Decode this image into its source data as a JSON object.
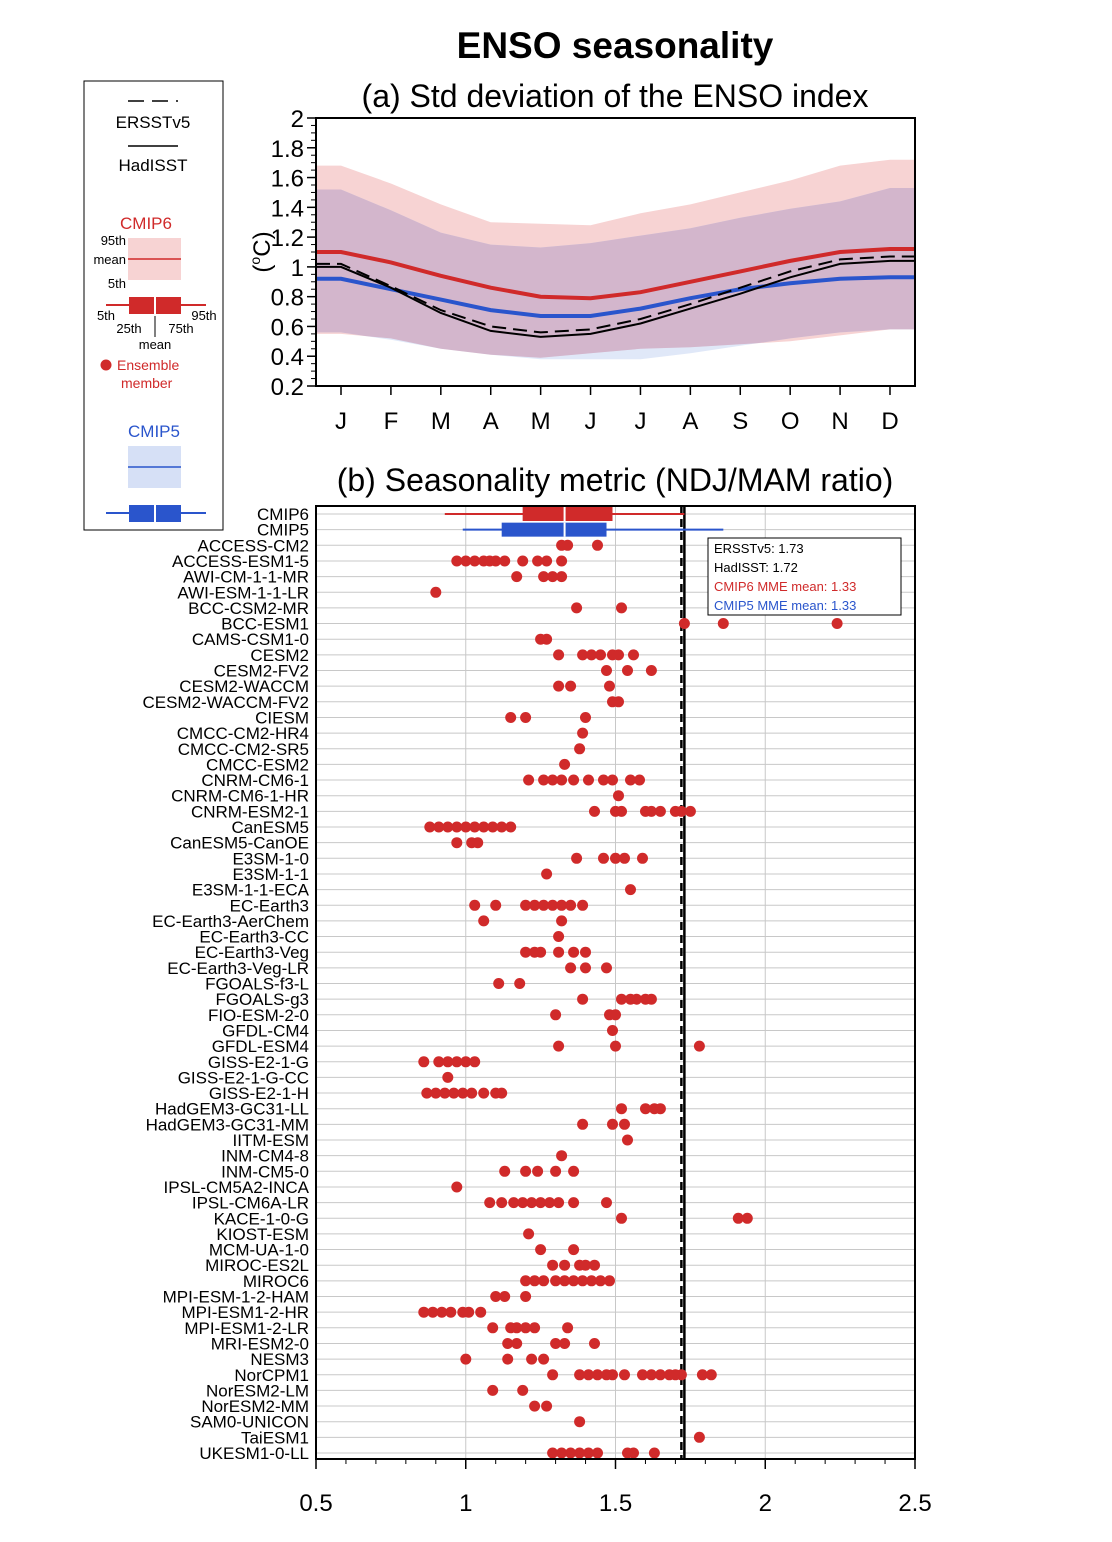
{
  "figure": {
    "title": "ENSO seasonality"
  },
  "legend": {
    "ersst_label": "ERSSTv5",
    "hadisst_label": "HadISST",
    "cmip6_label": "CMIP6",
    "cmip5_label": "CMIP5",
    "p95_label": "95th",
    "mean_label": "mean",
    "p5_label": "5th",
    "box_p5_label": "5th",
    "box_p25_label": "25th",
    "box_p75_label": "75th",
    "box_p95_label": "95th",
    "box_mean_label": "mean",
    "ensemble_label_1": "Ensemble",
    "ensemble_label_2": "member"
  },
  "colors": {
    "cmip6": "#d02a2a",
    "cmip6_band": "#f7d3d3",
    "cmip5": "#2a55cc",
    "cmip5_band": "#d6e0f6",
    "overlap_band": "#d3b6cc",
    "obs": "#000000",
    "grid": "#c8c8c8"
  },
  "chart_data": [
    {
      "type": "line",
      "title": "(a) Std deviation of the ENSO index",
      "ylabel": "(°C)",
      "ylabel_prefix": "(",
      "ylabel_unit": "C)",
      "categories": [
        "J",
        "F",
        "M",
        "A",
        "M",
        "J",
        "J",
        "A",
        "S",
        "O",
        "N",
        "D"
      ],
      "ylim": [
        0.2,
        2.0
      ],
      "yticks": [
        "0.2",
        "0.4",
        "0.6",
        "0.8",
        "1",
        "1.2",
        "1.4",
        "1.6",
        "1.8",
        "2"
      ],
      "grid": false,
      "series": [
        {
          "name": "ERSSTv5",
          "style": "dashed",
          "values": [
            1.02,
            0.87,
            0.71,
            0.6,
            0.56,
            0.58,
            0.65,
            0.75,
            0.86,
            0.97,
            1.05,
            1.07
          ]
        },
        {
          "name": "HadISST",
          "style": "solid",
          "values": [
            1.0,
            0.86,
            0.69,
            0.57,
            0.53,
            0.55,
            0.62,
            0.72,
            0.82,
            0.93,
            1.02,
            1.04
          ]
        },
        {
          "name": "CMIP6",
          "style": "mean",
          "values": [
            1.1,
            1.03,
            0.94,
            0.86,
            0.8,
            0.79,
            0.83,
            0.9,
            0.97,
            1.04,
            1.1,
            1.12
          ],
          "p5": [
            0.55,
            0.52,
            0.45,
            0.41,
            0.39,
            0.42,
            0.45,
            0.46,
            0.48,
            0.5,
            0.54,
            0.58
          ],
          "p95": [
            1.68,
            1.56,
            1.42,
            1.3,
            1.29,
            1.28,
            1.36,
            1.42,
            1.5,
            1.58,
            1.68,
            1.72
          ]
        },
        {
          "name": "CMIP5",
          "style": "mean",
          "values": [
            0.92,
            0.85,
            0.78,
            0.71,
            0.67,
            0.67,
            0.72,
            0.79,
            0.85,
            0.89,
            0.92,
            0.93
          ],
          "p5": [
            0.56,
            0.51,
            0.45,
            0.41,
            0.38,
            0.38,
            0.38,
            0.42,
            0.47,
            0.52,
            0.56,
            0.58
          ],
          "p95": [
            1.52,
            1.38,
            1.23,
            1.15,
            1.13,
            1.16,
            1.21,
            1.26,
            1.33,
            1.39,
            1.44,
            1.53
          ]
        }
      ]
    },
    {
      "type": "scatter",
      "title": "(b) Seasonality metric (NDJ/MAM ratio)",
      "xlim": [
        0.5,
        2.5
      ],
      "xticks": [
        "0.5",
        "1",
        "1.5",
        "2",
        "2.5"
      ],
      "grid": true,
      "obs_lines": [
        {
          "name": "ERSSTv5",
          "value": 1.73,
          "label": "ERSSTv5: 1.73",
          "style": "solid"
        },
        {
          "name": "HadISST",
          "value": 1.72,
          "label": "HadISST: 1.72",
          "style": "dashed"
        }
      ],
      "annotation": {
        "ersst": "ERSSTv5: 1.73",
        "hadisst": "HadISST: 1.72",
        "cmip6": "CMIP6 MME mean: 1.33",
        "cmip5": "CMIP5 MME mean: 1.33"
      },
      "boxes": [
        {
          "name": "CMIP6",
          "p5": 0.93,
          "p25": 1.19,
          "mean": 1.33,
          "p75": 1.49,
          "p95": 1.73
        },
        {
          "name": "CMIP5",
          "p5": 0.99,
          "p25": 1.12,
          "mean": 1.33,
          "p75": 1.47,
          "p95": 1.86
        }
      ],
      "models": [
        {
          "name": "ACCESS-CM2",
          "values": [
            1.32,
            1.34,
            1.44
          ]
        },
        {
          "name": "ACCESS-ESM1-5",
          "values": [
            0.97,
            1.0,
            1.03,
            1.06,
            1.08,
            1.1,
            1.13,
            1.19,
            1.24,
            1.27,
            1.32
          ]
        },
        {
          "name": "AWI-CM-1-1-MR",
          "values": [
            1.17,
            1.26,
            1.29,
            1.32
          ]
        },
        {
          "name": "AWI-ESM-1-1-LR",
          "values": [
            0.9
          ]
        },
        {
          "name": "BCC-CSM2-MR",
          "values": [
            1.37,
            1.52
          ]
        },
        {
          "name": "BCC-ESM1",
          "values": [
            1.73,
            1.86,
            2.24
          ]
        },
        {
          "name": "CAMS-CSM1-0",
          "values": [
            1.25,
            1.27
          ]
        },
        {
          "name": "CESM2",
          "values": [
            1.31,
            1.39,
            1.42,
            1.45,
            1.49,
            1.51,
            1.56
          ]
        },
        {
          "name": "CESM2-FV2",
          "values": [
            1.47,
            1.54,
            1.62
          ]
        },
        {
          "name": "CESM2-WACCM",
          "values": [
            1.31,
            1.35,
            1.48
          ]
        },
        {
          "name": "CESM2-WACCM-FV2",
          "values": [
            1.49,
            1.51
          ]
        },
        {
          "name": "CIESM",
          "values": [
            1.15,
            1.2,
            1.4
          ]
        },
        {
          "name": "CMCC-CM2-HR4",
          "values": [
            1.39
          ]
        },
        {
          "name": "CMCC-CM2-SR5",
          "values": [
            1.38
          ]
        },
        {
          "name": "CMCC-ESM2",
          "values": [
            1.33
          ]
        },
        {
          "name": "CNRM-CM6-1",
          "values": [
            1.21,
            1.26,
            1.29,
            1.32,
            1.36,
            1.41,
            1.46,
            1.49,
            1.55,
            1.58
          ]
        },
        {
          "name": "CNRM-CM6-1-HR",
          "values": [
            1.51
          ]
        },
        {
          "name": "CNRM-ESM2-1",
          "values": [
            1.43,
            1.5,
            1.52,
            1.6,
            1.62,
            1.65,
            1.7,
            1.72,
            1.75
          ]
        },
        {
          "name": "CanESM5",
          "values": [
            0.88,
            0.91,
            0.94,
            0.97,
            1.0,
            1.03,
            1.06,
            1.09,
            1.12,
            1.15
          ]
        },
        {
          "name": "CanESM5-CanOE",
          "values": [
            0.97,
            1.02,
            1.04
          ]
        },
        {
          "name": "E3SM-1-0",
          "values": [
            1.37,
            1.46,
            1.5,
            1.53,
            1.59
          ]
        },
        {
          "name": "E3SM-1-1",
          "values": [
            1.27
          ]
        },
        {
          "name": "E3SM-1-1-ECA",
          "values": [
            1.55
          ]
        },
        {
          "name": "EC-Earth3",
          "values": [
            1.03,
            1.1,
            1.2,
            1.23,
            1.26,
            1.29,
            1.32,
            1.35,
            1.39
          ]
        },
        {
          "name": "EC-Earth3-AerChem",
          "values": [
            1.32,
            1.06
          ]
        },
        {
          "name": "EC-Earth3-CC",
          "values": [
            1.31
          ]
        },
        {
          "name": "EC-Earth3-Veg",
          "values": [
            1.2,
            1.23,
            1.25,
            1.31,
            1.36,
            1.4
          ]
        },
        {
          "name": "EC-Earth3-Veg-LR",
          "values": [
            1.35,
            1.4,
            1.47
          ]
        },
        {
          "name": "FGOALS-f3-L",
          "values": [
            1.11,
            1.18
          ]
        },
        {
          "name": "FGOALS-g3",
          "values": [
            1.39,
            1.52,
            1.55,
            1.57,
            1.6,
            1.62
          ]
        },
        {
          "name": "FIO-ESM-2-0",
          "values": [
            1.3,
            1.48,
            1.5
          ]
        },
        {
          "name": "GFDL-CM4",
          "values": [
            1.49
          ]
        },
        {
          "name": "GFDL-ESM4",
          "values": [
            1.31,
            1.5,
            1.78
          ]
        },
        {
          "name": "GISS-E2-1-G",
          "values": [
            0.86,
            0.91,
            0.94,
            0.97,
            1.0,
            1.03
          ]
        },
        {
          "name": "GISS-E2-1-G-CC",
          "values": [
            0.94
          ]
        },
        {
          "name": "GISS-E2-1-H",
          "values": [
            0.87,
            0.9,
            0.93,
            0.96,
            0.99,
            1.02,
            1.06,
            1.1,
            1.12
          ]
        },
        {
          "name": "HadGEM3-GC31-LL",
          "values": [
            1.52,
            1.6,
            1.63,
            1.65
          ]
        },
        {
          "name": "HadGEM3-GC31-MM",
          "values": [
            1.39,
            1.49,
            1.53
          ]
        },
        {
          "name": "IITM-ESM",
          "values": [
            1.54
          ]
        },
        {
          "name": "INM-CM4-8",
          "values": [
            1.32
          ]
        },
        {
          "name": "INM-CM5-0",
          "values": [
            1.13,
            1.2,
            1.24,
            1.3,
            1.36
          ]
        },
        {
          "name": "IPSL-CM5A2-INCA",
          "values": [
            0.97
          ]
        },
        {
          "name": "IPSL-CM6A-LR",
          "values": [
            1.08,
            1.12,
            1.16,
            1.19,
            1.22,
            1.25,
            1.28,
            1.31,
            1.36,
            1.47
          ]
        },
        {
          "name": "KACE-1-0-G",
          "values": [
            1.52,
            1.91,
            1.94
          ]
        },
        {
          "name": "KIOST-ESM",
          "values": [
            1.21
          ]
        },
        {
          "name": "MCM-UA-1-0",
          "values": [
            1.25,
            1.36
          ]
        },
        {
          "name": "MIROC-ES2L",
          "values": [
            1.29,
            1.33,
            1.38,
            1.4,
            1.43
          ]
        },
        {
          "name": "MIROC6",
          "values": [
            1.2,
            1.23,
            1.26,
            1.3,
            1.33,
            1.36,
            1.39,
            1.42,
            1.45,
            1.48
          ]
        },
        {
          "name": "MPI-ESM-1-2-HAM",
          "values": [
            1.1,
            1.13,
            1.2
          ]
        },
        {
          "name": "MPI-ESM1-2-HR",
          "values": [
            0.86,
            0.89,
            0.92,
            0.95,
            0.99,
            1.01,
            1.05
          ]
        },
        {
          "name": "MPI-ESM1-2-LR",
          "values": [
            1.09,
            1.15,
            1.17,
            1.2,
            1.23,
            1.34
          ]
        },
        {
          "name": "MRI-ESM2-0",
          "values": [
            1.14,
            1.17,
            1.3,
            1.33,
            1.43
          ]
        },
        {
          "name": "NESM3",
          "values": [
            1.0,
            1.14,
            1.22,
            1.26
          ]
        },
        {
          "name": "NorCPM1",
          "values": [
            1.29,
            1.38,
            1.41,
            1.44,
            1.47,
            1.49,
            1.53,
            1.59,
            1.62,
            1.65,
            1.68,
            1.7,
            1.72,
            1.79,
            1.82
          ]
        },
        {
          "name": "NorESM2-LM",
          "values": [
            1.09,
            1.19
          ]
        },
        {
          "name": "NorESM2-MM",
          "values": [
            1.23,
            1.27
          ]
        },
        {
          "name": "SAM0-UNICON",
          "values": [
            1.38
          ]
        },
        {
          "name": "TaiESM1",
          "values": [
            1.78
          ]
        },
        {
          "name": "UKESM1-0-LL",
          "values": [
            1.29,
            1.32,
            1.35,
            1.38,
            1.41,
            1.44,
            1.54,
            1.56,
            1.63
          ]
        }
      ]
    }
  ]
}
